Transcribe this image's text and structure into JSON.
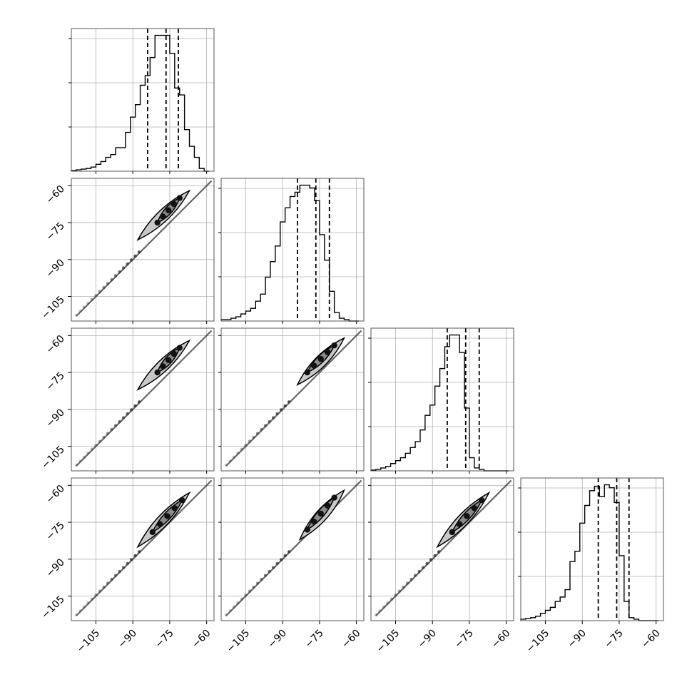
{
  "chart_data": {
    "type": "corner",
    "n_params": 4,
    "tick_labels": [
      "−105",
      "−90",
      "−75",
      "−60"
    ],
    "tick_values": [
      -105,
      -90,
      -75,
      -60
    ],
    "axis_range": [
      -115,
      -57
    ],
    "grid": true,
    "colors": {
      "line": "#000000",
      "grid": "#b0b0b0",
      "contour_fill": "#c8c8c8",
      "frame": "#555555"
    },
    "diagonal": [
      {
        "param": 1,
        "xlim": [
          -115,
          -57
        ],
        "bin_edges": [
          -115,
          -113,
          -111,
          -109,
          -107,
          -105,
          -103,
          -101,
          -99,
          -97,
          -95,
          -93,
          -91,
          -89,
          -87,
          -85,
          -83,
          -81,
          -79,
          -77,
          -75,
          -73,
          -71,
          -69,
          -67,
          -65,
          -63,
          -61,
          -59
        ],
        "counts": [
          0.005,
          0.01,
          0.015,
          0.02,
          0.03,
          0.05,
          0.07,
          0.1,
          0.12,
          0.17,
          0.17,
          0.28,
          0.39,
          0.48,
          0.62,
          0.69,
          0.82,
          0.98,
          0.98,
          0.98,
          0.85,
          0.6,
          0.55,
          0.3,
          0.18,
          0.1,
          0.02,
          0.0
        ],
        "quantiles": [
          -84.0,
          -76.5,
          -71.5
        ]
      },
      {
        "param": 2,
        "xlim": [
          -115,
          -57
        ],
        "bin_edges": [
          -115,
          -113,
          -111,
          -109,
          -107,
          -105,
          -103,
          -101,
          -99,
          -97,
          -95,
          -93,
          -91,
          -89,
          -87,
          -85,
          -83,
          -81,
          -79,
          -77,
          -75,
          -73,
          -71,
          -69,
          -67,
          -65,
          -63,
          -61,
          -59
        ],
        "counts": [
          0.01,
          0.01,
          0.02,
          0.03,
          0.05,
          0.07,
          0.09,
          0.14,
          0.19,
          0.31,
          0.42,
          0.53,
          0.7,
          0.8,
          0.88,
          0.91,
          0.96,
          0.96,
          0.94,
          0.85,
          0.61,
          0.43,
          0.21,
          0.06,
          0.02,
          0.01,
          0.0,
          0.0
        ],
        "quantiles": [
          -84.0,
          -76.5,
          -71.0
        ]
      },
      {
        "param": 3,
        "xlim": [
          -115,
          -57
        ],
        "bin_edges": [
          -115,
          -113,
          -111,
          -109,
          -107,
          -105,
          -103,
          -101,
          -99,
          -97,
          -95,
          -93,
          -91,
          -89,
          -87,
          -85,
          -83,
          -81,
          -79,
          -77,
          -75,
          -73,
          -71,
          -69,
          -67,
          -65,
          -63,
          -61,
          -59
        ],
        "counts": [
          0.005,
          0.01,
          0.02,
          0.03,
          0.05,
          0.07,
          0.09,
          0.12,
          0.16,
          0.2,
          0.28,
          0.38,
          0.45,
          0.58,
          0.7,
          0.85,
          0.93,
          0.93,
          0.81,
          0.43,
          0.09,
          0.02,
          0.01,
          0.0,
          0.0,
          0.0,
          0.0,
          0.0
        ],
        "quantiles": [
          -84.0,
          -76.5,
          -71.0
        ]
      },
      {
        "param": 4,
        "xlim": [
          -115,
          -57
        ],
        "bin_edges": [
          -115,
          -113,
          -111,
          -109,
          -107,
          -105,
          -103,
          -101,
          -99,
          -97,
          -95,
          -93,
          -91,
          -89,
          -87,
          -85,
          -83,
          -81,
          -79,
          -77,
          -75,
          -73,
          -71,
          -69,
          -67,
          -65,
          -63,
          -61,
          -59
        ],
        "counts": [
          0.01,
          0.015,
          0.02,
          0.03,
          0.05,
          0.07,
          0.09,
          0.13,
          0.16,
          0.21,
          0.4,
          0.47,
          0.66,
          0.78,
          0.88,
          0.91,
          0.84,
          0.92,
          0.9,
          0.8,
          0.44,
          0.13,
          0.02,
          0.01,
          0.0,
          0.0,
          0.0,
          0.0
        ],
        "quantiles": [
          -83.5,
          -76.0,
          -71.0
        ]
      }
    ],
    "pairs": [
      {
        "x_param": 1,
        "y_param": 2,
        "inner": [
          [
            -80,
            -75
          ],
          [
            -71,
            -65
          ]
        ],
        "outer": [
          [
            -88,
            -82
          ],
          [
            -67,
            -62
          ]
        ]
      },
      {
        "x_param": 1,
        "y_param": 3,
        "inner": [
          [
            -80,
            -75
          ],
          [
            -71,
            -65
          ]
        ],
        "outer": [
          [
            -88,
            -82
          ],
          [
            -67,
            -62
          ]
        ]
      },
      {
        "x_param": 2,
        "y_param": 3,
        "inner": [
          [
            -80,
            -75
          ],
          [
            -69,
            -64
          ]
        ],
        "outer": [
          [
            -84,
            -80
          ],
          [
            -65,
            -61
          ]
        ]
      },
      {
        "x_param": 1,
        "y_param": 4,
        "inner": [
          [
            -82,
            -79
          ],
          [
            -70,
            -66
          ]
        ],
        "outer": [
          [
            -88,
            -85
          ],
          [
            -67,
            -63
          ]
        ]
      },
      {
        "x_param": 2,
        "y_param": 4,
        "inner": [
          [
            -80,
            -78
          ],
          [
            -69,
            -65
          ]
        ],
        "outer": [
          [
            -83,
            -82
          ],
          [
            -65,
            -62
          ]
        ]
      },
      {
        "x_param": 3,
        "y_param": 4,
        "inner": [
          [
            -82,
            -79
          ],
          [
            -70,
            -66
          ]
        ],
        "outer": [
          [
            -88,
            -85
          ],
          [
            -67,
            -63
          ]
        ]
      }
    ]
  }
}
